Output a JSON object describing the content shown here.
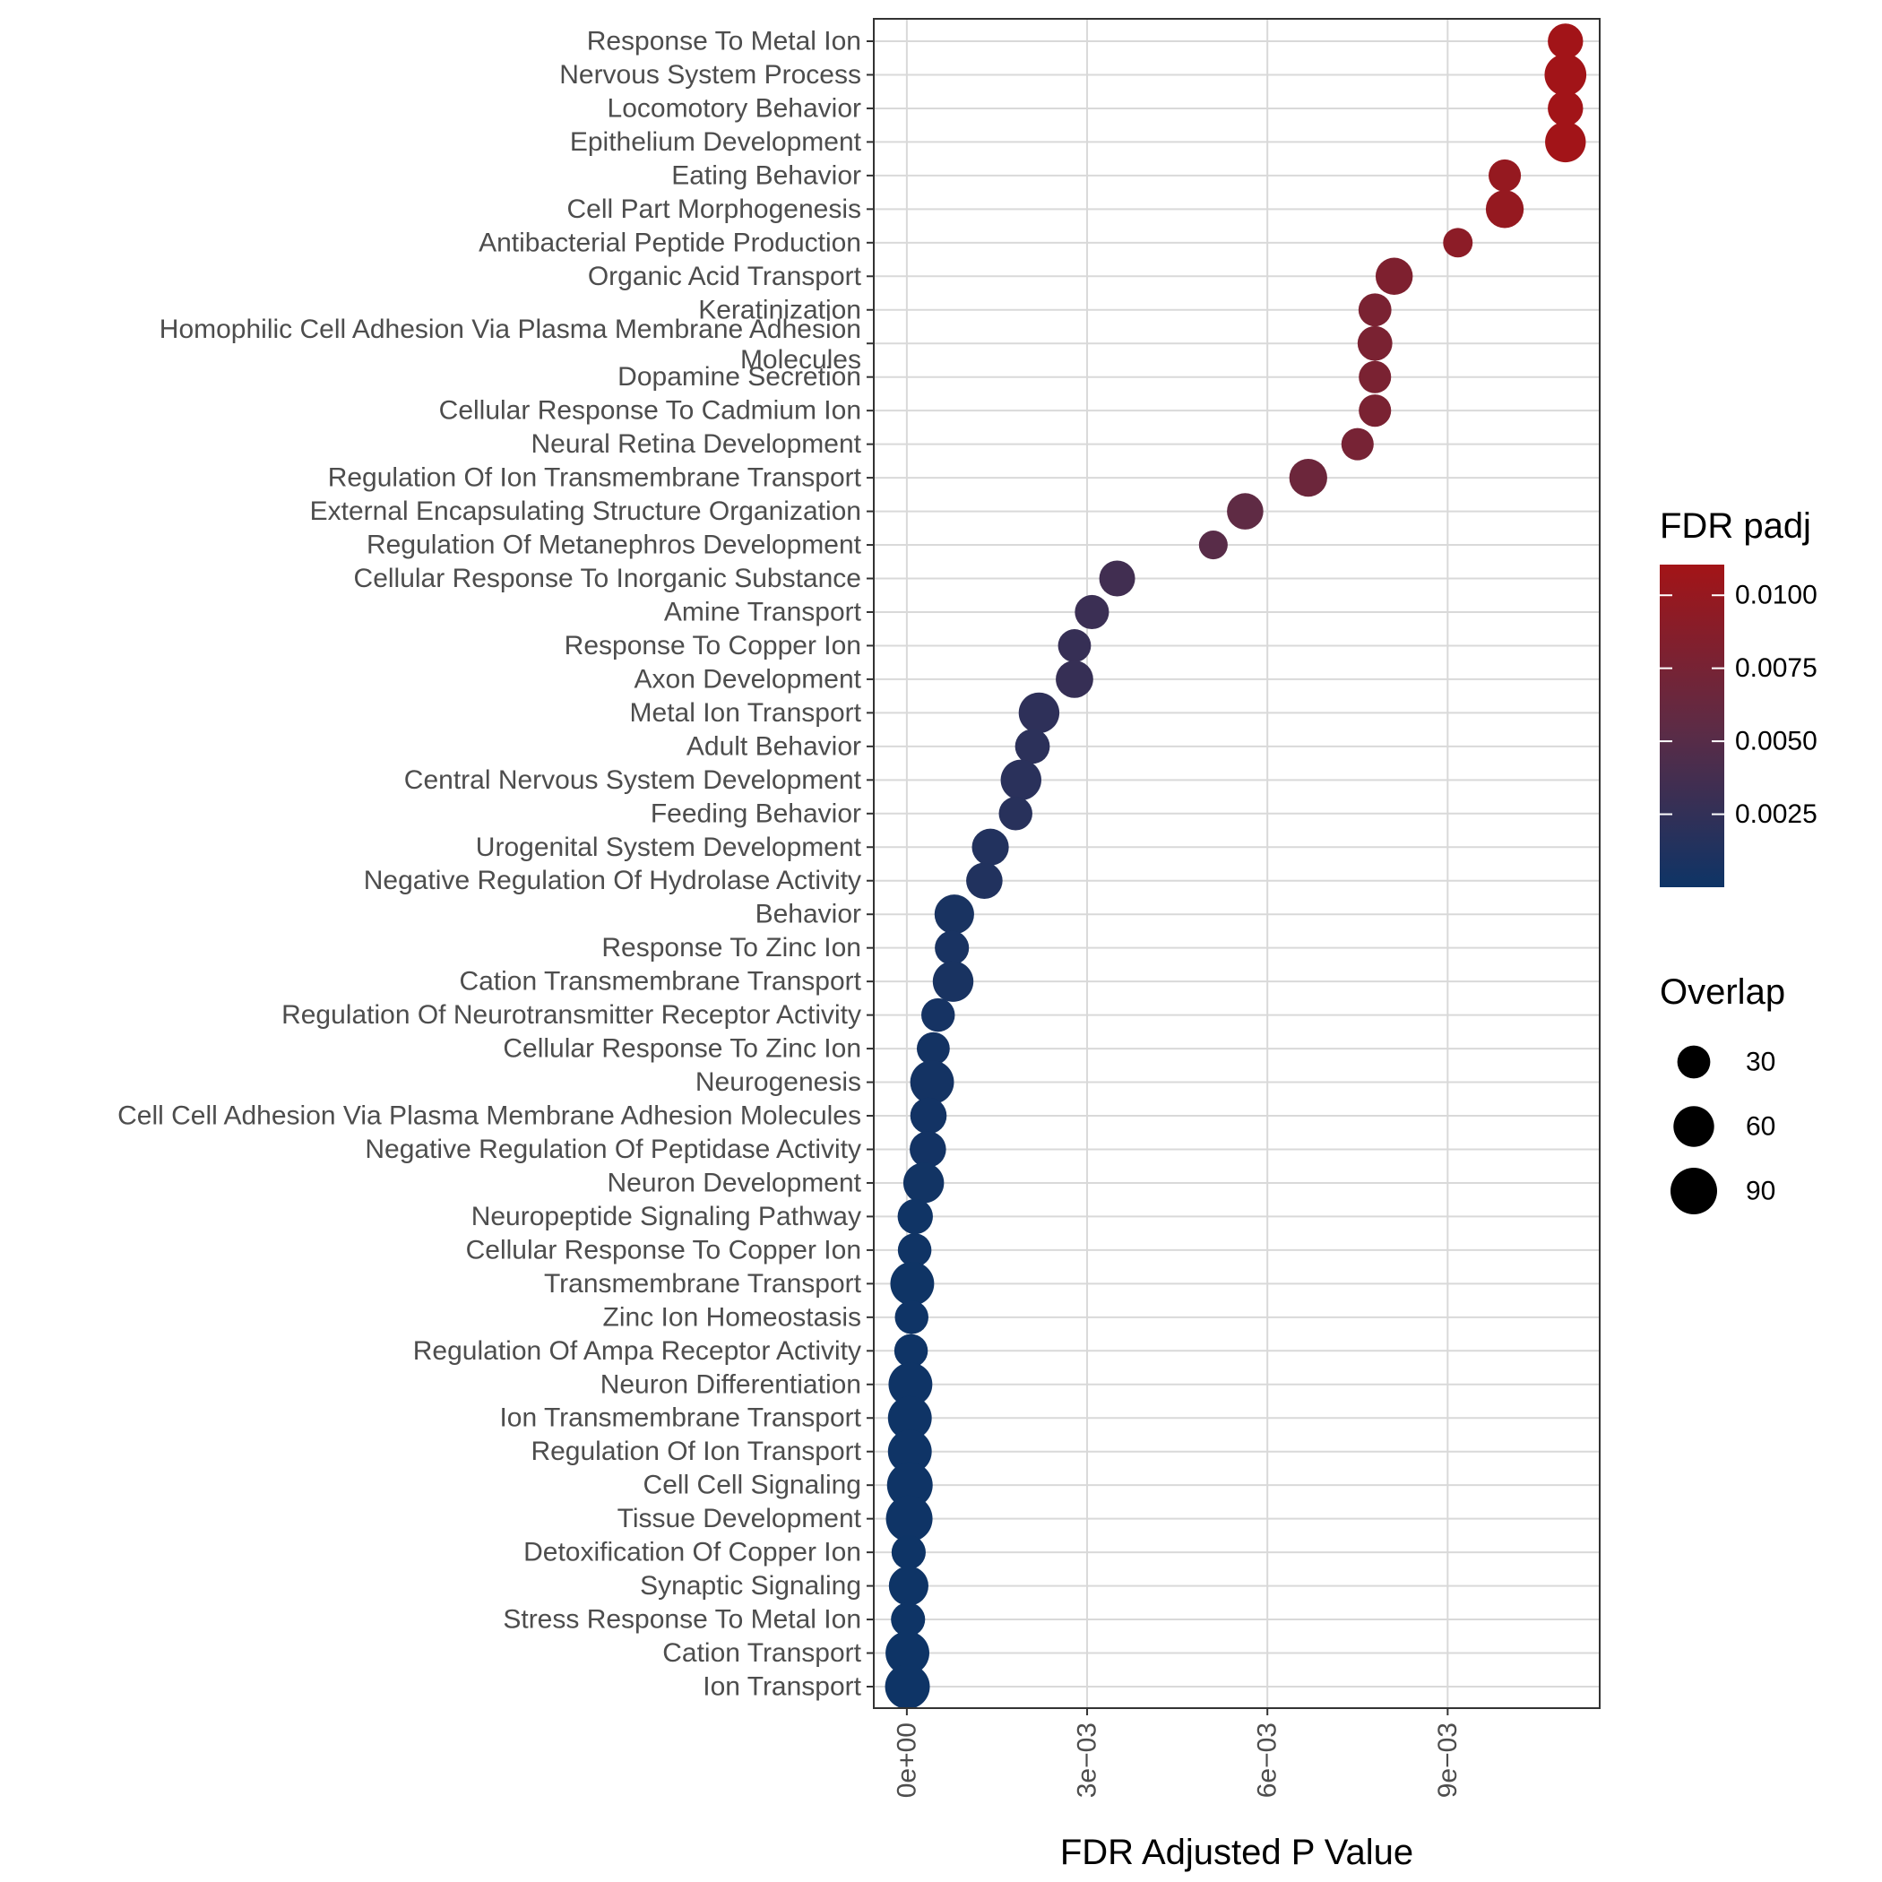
{
  "chart_data": {
    "type": "scatter",
    "title": "",
    "xlabel": "FDR Adjusted P Value",
    "ylabel": "",
    "xlim": [
      -0.00055,
      0.01153
    ],
    "x_ticks": [
      {
        "value": 0,
        "label": "0e+00"
      },
      {
        "value": 0.003,
        "label": "3e−03"
      },
      {
        "value": 0.006,
        "label": "6e−03"
      },
      {
        "value": 0.009,
        "label": "9e−03"
      }
    ],
    "grid": true,
    "color_scale": {
      "low": "#0e3466",
      "mid": "#5e2b45",
      "high": "#a31417"
    },
    "legend": {
      "placement": "right",
      "color": {
        "title": "FDR padj",
        "range": [
          0,
          0.01105
        ],
        "ticks": [
          {
            "value": 0.01,
            "label": "0.0100"
          },
          {
            "value": 0.0075,
            "label": "0.0075"
          },
          {
            "value": 0.005,
            "label": "0.0050"
          },
          {
            "value": 0.0025,
            "label": "0.0025"
          }
        ]
      },
      "size": {
        "title": "Overlap",
        "items": [
          {
            "value": 30,
            "label": "30"
          },
          {
            "value": 60,
            "label": "60"
          },
          {
            "value": 90,
            "label": "90"
          }
        ]
      }
    },
    "categories": [
      "Response To Metal Ion",
      "Nervous System Process",
      "Locomotory Behavior",
      "Epithelium Development",
      "Eating Behavior",
      "Cell Part Morphogenesis",
      "Antibacterial Peptide Production",
      "Organic Acid Transport",
      "Keratinization",
      "Homophilic Cell Adhesion Via Plasma Membrane Adhesion\nMolecules",
      "Dopamine Secretion",
      "Cellular Response To Cadmium Ion",
      "Neural Retina Development",
      "Regulation Of Ion Transmembrane Transport",
      "External Encapsulating Structure Organization",
      "Regulation Of Metanephros Development",
      "Cellular Response To Inorganic Substance",
      "Amine Transport",
      "Response To Copper Ion",
      "Axon Development",
      "Metal Ion Transport",
      "Adult Behavior",
      "Central Nervous System Development",
      "Feeding Behavior",
      "Urogenital System Development",
      "Negative Regulation Of Hydrolase Activity",
      "Behavior",
      "Response To Zinc Ion",
      "Cation Transmembrane Transport",
      "Regulation Of Neurotransmitter Receptor Activity",
      "Cellular Response To Zinc Ion",
      "Neurogenesis",
      "Cell Cell Adhesion Via Plasma Membrane Adhesion Molecules",
      "Negative Regulation Of Peptidase Activity",
      "Neuron Development",
      "Neuropeptide Signaling Pathway",
      "Cellular Response To Copper Ion",
      "Transmembrane Transport",
      "Zinc Ion Homeostasis",
      "Regulation Of Ampa Receptor Activity",
      "Neuron Differentiation",
      "Ion Transmembrane Transport",
      "Regulation Of Ion Transport",
      "Cell Cell Signaling",
      "Tissue Development",
      "Detoxification Of Copper Ion",
      "Synaptic Signaling",
      "Stress Response To Metal Ion",
      "Cation Transport",
      "Ion Transport"
    ],
    "x": [
      0.01096,
      0.01096,
      0.01096,
      0.01096,
      0.00995,
      0.00995,
      0.00917,
      0.00811,
      0.00779,
      0.00779,
      0.00779,
      0.00779,
      0.0075,
      0.00668,
      0.00563,
      0.0051,
      0.0035,
      0.00308,
      0.00279,
      0.00279,
      0.0022,
      0.00209,
      0.0019,
      0.00181,
      0.00139,
      0.00129,
      0.00079,
      0.00075,
      0.00077,
      0.00052,
      0.00044,
      0.00042,
      0.00036,
      0.00035,
      0.00028,
      0.00014,
      0.00013,
      9e-05,
      8e-05,
      7e-05,
      6e-05,
      5e-05,
      5e-05,
      5e-05,
      4e-05,
      3e-05,
      3e-05,
      2e-05,
      1e-05,
      1e-05
    ],
    "overlap": [
      38,
      65,
      38,
      60,
      28,
      48,
      20,
      45,
      30,
      36,
      28,
      28,
      28,
      48,
      42,
      18,
      40,
      34,
      30,
      46,
      60,
      36,
      60,
      32,
      44,
      42,
      55,
      34,
      60,
      32,
      30,
      75,
      42,
      42,
      60,
      38,
      32,
      75,
      32,
      32,
      75,
      75,
      75,
      85,
      90,
      34,
      55,
      34,
      75,
      80
    ]
  }
}
